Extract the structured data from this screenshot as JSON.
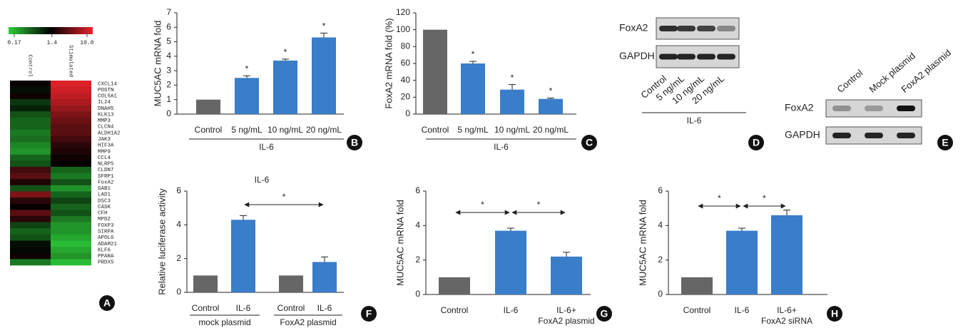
{
  "chart_data": [
    {
      "type": "heatmap",
      "panel": "A",
      "columns": [
        "Control",
        "Stimulated"
      ],
      "rows": [
        "CXCL14",
        "POSTN",
        "COL5A1",
        "IL24",
        "DNAH5",
        "KLK13",
        "MMP3",
        "CLCN4",
        "ALDH1A2",
        "JAK3",
        "HIF3A",
        "MMP9",
        "CCL4",
        "NLRP5",
        "CLDN7",
        "SFRP1",
        "FoxA2",
        "GAB1",
        "LAD1",
        "DSC3",
        "CASK",
        "CFH",
        "MPDZ",
        "FOXP3",
        "SIRPA",
        "APOL6",
        "ADAM21",
        "KLF6",
        "PPARA",
        "PRDX5"
      ],
      "values": [
        [
          1.5,
          9
        ],
        [
          1.2,
          8
        ],
        [
          1.6,
          7
        ],
        [
          0.8,
          6
        ],
        [
          1.0,
          5
        ],
        [
          0.6,
          4
        ],
        [
          0.5,
          3.5
        ],
        [
          0.5,
          3
        ],
        [
          0.4,
          3
        ],
        [
          0.45,
          2.5
        ],
        [
          0.35,
          2
        ],
        [
          0.3,
          1.8
        ],
        [
          0.5,
          1.6
        ],
        [
          0.6,
          1.5
        ],
        [
          2.5,
          0.5
        ],
        [
          3,
          0.4
        ],
        [
          1.8,
          0.6
        ],
        [
          0.6,
          0.3
        ],
        [
          4,
          0.5
        ],
        [
          2,
          0.7
        ],
        [
          1.5,
          0.5
        ],
        [
          3,
          0.6
        ],
        [
          2,
          0.4
        ],
        [
          0.7,
          0.3
        ],
        [
          0.5,
          0.3
        ],
        [
          0.6,
          0.25
        ],
        [
          1.2,
          0.2
        ],
        [
          1.3,
          0.25
        ],
        [
          1.6,
          0.3
        ],
        [
          0.4,
          0.2
        ]
      ],
      "colorbar_ticks": [
        0.17,
        1.4,
        {
          "value": 10,
          "label": "10.0"
        }
      ],
      "log_scale": true,
      "colors": {
        "low": "#2ecc3a",
        "mid": "#000000",
        "high": "#e8232b"
      }
    },
    {
      "type": "bar",
      "panel": "B",
      "ylabel": "MUC5AC mRNA fold",
      "categories": [
        "Control",
        "5 ng/mL",
        "10 ng/mL",
        "20 ng/mL"
      ],
      "values": [
        1,
        2.5,
        3.7,
        5.3
      ],
      "errors": [
        0,
        0.15,
        0.1,
        0.3
      ],
      "colors": [
        "#666666",
        "#3a7dc9",
        "#3a7dc9",
        "#3a7dc9"
      ],
      "significance": [
        null,
        "*",
        "*",
        "*"
      ],
      "group_label": "IL-6",
      "ylim": [
        0,
        7
      ],
      "yticks": [
        0,
        1,
        2,
        3,
        4,
        5,
        6,
        7
      ]
    },
    {
      "type": "bar",
      "panel": "C",
      "ylabel": "FoxA2 mRNA fold (%)",
      "categories": [
        "Control",
        "5 ng/mL",
        "10 ng/mL",
        "20 ng/mL"
      ],
      "values": [
        100,
        60,
        29,
        18
      ],
      "errors": [
        0,
        2.5,
        6,
        1
      ],
      "colors": [
        "#666666",
        "#3a7dc9",
        "#3a7dc9",
        "#3a7dc9"
      ],
      "significance": [
        null,
        "*",
        "*",
        "*"
      ],
      "group_label": "IL-6",
      "ylim": [
        0,
        120
      ],
      "yticks": [
        0,
        20,
        40,
        60,
        80,
        100,
        120
      ]
    },
    {
      "type": "blot",
      "panel": "D",
      "rows": [
        "FoxA2",
        "GAPDH"
      ],
      "lanes": [
        "Control",
        "5 ng/mL",
        "10 ng/mL",
        "20 ng/mL"
      ],
      "group_label": "IL-6"
    },
    {
      "type": "blot",
      "panel": "E",
      "rows": [
        "FoxA2",
        "GAPDH"
      ],
      "lanes": [
        "Control",
        "Mock plasmid",
        "FoxA2 plasmid"
      ]
    },
    {
      "type": "bar",
      "panel": "F",
      "title": "IL-6",
      "ylabel": "Relative luciferase activity",
      "categories": [
        "Control",
        "IL-6",
        "Control",
        "IL-6"
      ],
      "values": [
        1,
        4.3,
        1,
        1.8
      ],
      "errors": [
        0,
        0.25,
        0,
        0.3
      ],
      "colors": [
        "#666666",
        "#3a7dc9",
        "#666666",
        "#3a7dc9"
      ],
      "groups": [
        "mock plasmid",
        "FoxA2 plasmid"
      ],
      "comparisons": [
        {
          "from": 1,
          "to": 3,
          "label": "*"
        }
      ],
      "ylim": [
        0,
        6
      ],
      "yticks": [
        0,
        2,
        4,
        6
      ]
    },
    {
      "type": "bar",
      "panel": "G",
      "ylabel": "MUC5AC mRNA fold",
      "categories": [
        "Control",
        "IL-6",
        "IL-6+"
      ],
      "category_sublabels": [
        null,
        null,
        "FoxA2 plasmid"
      ],
      "values": [
        1,
        3.7,
        2.2
      ],
      "errors": [
        0,
        0.15,
        0.25
      ],
      "colors": [
        "#666666",
        "#3a7dc9",
        "#3a7dc9"
      ],
      "comparisons": [
        {
          "from": 0,
          "to": 1,
          "label": "*"
        },
        {
          "from": 1,
          "to": 2,
          "label": "*"
        }
      ],
      "ylim": [
        0,
        6
      ],
      "yticks": [
        0,
        2,
        4,
        6
      ]
    },
    {
      "type": "bar",
      "panel": "H",
      "ylabel": "MUC5AC mRNA fold",
      "categories": [
        "Control",
        "IL-6",
        "IL-6+"
      ],
      "category_sublabels": [
        null,
        null,
        "FoxA2 siRNA"
      ],
      "values": [
        1,
        3.7,
        4.6
      ],
      "errors": [
        0,
        0.15,
        0.3
      ],
      "colors": [
        "#666666",
        "#3a7dc9",
        "#3a7dc9"
      ],
      "comparisons": [
        {
          "from": 0,
          "to": 1,
          "label": "*"
        },
        {
          "from": 1,
          "to": 2,
          "label": "*"
        }
      ],
      "ylim": [
        0,
        6
      ],
      "yticks": [
        0,
        2,
        4,
        6
      ]
    }
  ]
}
